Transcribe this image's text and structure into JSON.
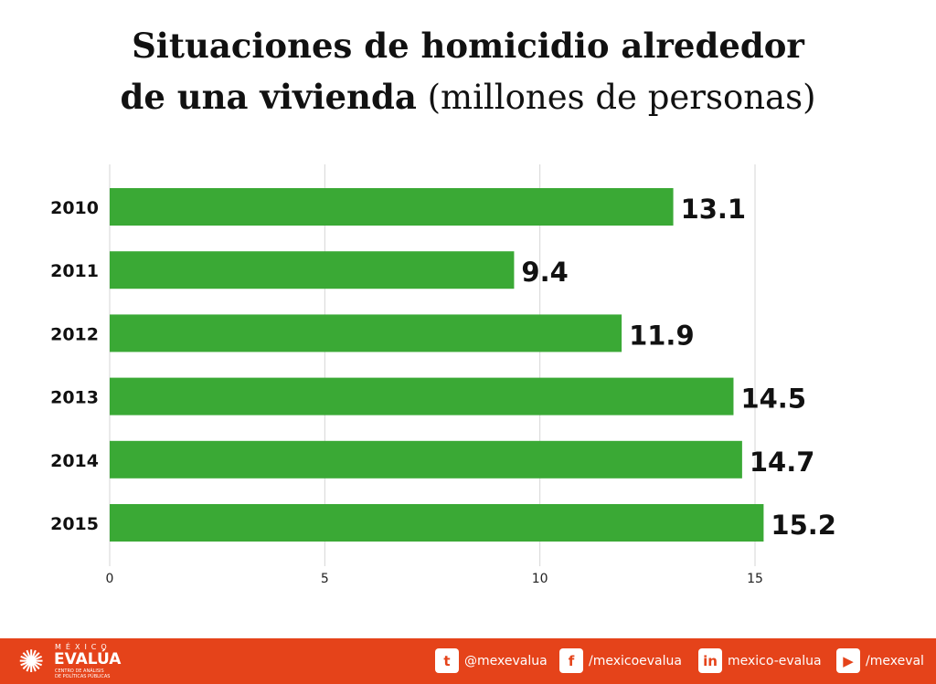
{
  "title": {
    "line1": "Situaciones de homicidio alrededor",
    "line2_bold": "de una vivienda",
    "line2_light": "(millones de personas)"
  },
  "chart_data": {
    "type": "bar",
    "orientation": "horizontal",
    "categories": [
      "2010",
      "2011",
      "2012",
      "2013",
      "2014",
      "2015"
    ],
    "values": [
      13.1,
      9.4,
      11.9,
      14.5,
      14.7,
      15.2
    ],
    "value_labels": [
      "13.1",
      "9.4",
      "11.9",
      "14.5",
      "14.7",
      "15.2"
    ],
    "xlim": [
      0,
      15.5
    ],
    "xticks": [
      "0",
      "5",
      "10",
      "15"
    ],
    "grid": true,
    "bar_color": "#3aa935"
  },
  "footer": {
    "background": "#e5431a",
    "logo": {
      "line1": "MÉXICO",
      "line2": "EVALÚA",
      "line3": "CENTRO DE ANÁLISIS",
      "line4": "DE POLÍTICAS PÚBLICAS"
    },
    "social": [
      {
        "icon": "twitter-icon",
        "glyph": "t",
        "label": "@mexevalua"
      },
      {
        "icon": "facebook-icon",
        "glyph": "f",
        "label": "/mexicoevalua"
      },
      {
        "icon": "linkedin-icon",
        "glyph": "in",
        "label": "mexico-evalua"
      },
      {
        "icon": "youtube-icon",
        "glyph": "▶",
        "label": "/mexeval"
      }
    ]
  }
}
